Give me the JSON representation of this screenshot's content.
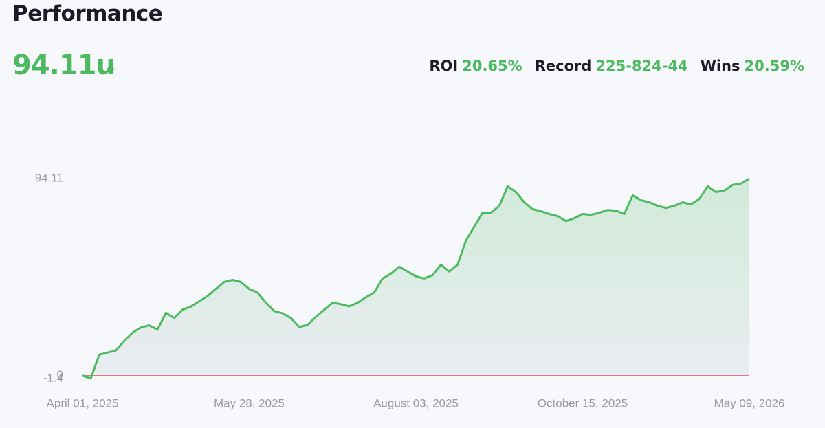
{
  "header": {
    "title": "Performance",
    "total": "94.11u"
  },
  "stats": [
    {
      "label": "ROI",
      "value": "20.65%"
    },
    {
      "label": "Record",
      "value": "225-824-44"
    },
    {
      "label": "Wins",
      "value": "20.59%"
    }
  ],
  "chart_data": {
    "type": "line",
    "categories": [
      "April 01, 2025",
      null,
      null,
      null,
      null,
      null,
      null,
      null,
      null,
      null,
      null,
      null,
      null,
      null,
      null,
      null,
      null,
      null,
      null,
      null,
      "May 28, 2025",
      null,
      null,
      null,
      null,
      null,
      null,
      null,
      null,
      null,
      null,
      null,
      null,
      null,
      null,
      null,
      null,
      null,
      null,
      null,
      "August 03, 2025",
      null,
      null,
      null,
      null,
      null,
      null,
      null,
      null,
      null,
      null,
      null,
      null,
      null,
      null,
      null,
      null,
      null,
      null,
      null,
      "October 15, 2025",
      null,
      null,
      null,
      null,
      null,
      null,
      null,
      null,
      null,
      null,
      null,
      null,
      null,
      null,
      null,
      null,
      null,
      null,
      null,
      "May 09, 2026"
    ],
    "values": [
      0,
      -1.4,
      10,
      11,
      12,
      16.5,
      20.5,
      23,
      24,
      22,
      30,
      27.5,
      31.5,
      33,
      35.5,
      38,
      41.4,
      44.7,
      45.7,
      44.7,
      41.4,
      39.7,
      34.8,
      30.8,
      29.8,
      27.5,
      23.2,
      24.2,
      28.1,
      31.5,
      34.8,
      34.1,
      33.1,
      34.8,
      37.4,
      39.7,
      46.4,
      48.7,
      52,
      49.7,
      47.4,
      46.4,
      48,
      53,
      49.7,
      53,
      64.6,
      71.2,
      77.8,
      77.8,
      81.1,
      90.4,
      87.7,
      82.8,
      79.5,
      78.5,
      77.2,
      76.2,
      73.8,
      75.2,
      77.2,
      76.8,
      77.8,
      79.1,
      78.8,
      77.2,
      86.1,
      83.8,
      82.8,
      81.1,
      80.1,
      81.1,
      82.8,
      81.8,
      84.4,
      90.4,
      87.7,
      88.4,
      91.1,
      91.7,
      94.11
    ],
    "color": "#4cba5f",
    "zero_line_color": "#e07a7a",
    "ylim": [
      -1.4,
      94.11
    ],
    "yticks": [
      -1.4,
      0,
      94.11
    ]
  }
}
